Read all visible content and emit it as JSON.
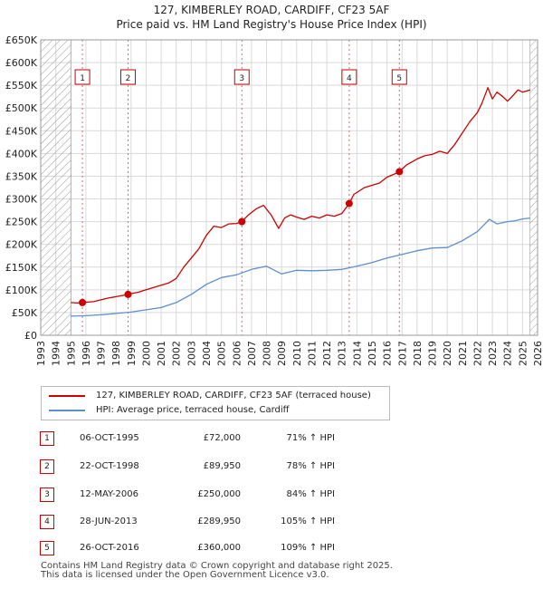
{
  "title_line1": "127, KIMBERLEY ROAD, CARDIFF, CF23 5AF",
  "title_line2": "Price paid vs. HM Land Registry's House Price Index (HPI)",
  "colors": {
    "property": "#cc0000",
    "hpi": "#5b8fd0",
    "grid": "#d9d9d9",
    "hatch": "#999999",
    "marker_line": "#e06666"
  },
  "chart_data": {
    "type": "line",
    "title": "Price paid vs. HM Land Registry's House Price Index (HPI)",
    "xlabel": "",
    "ylabel": "",
    "xlim": [
      1993,
      2026
    ],
    "ylim": [
      0,
      650000
    ],
    "x_ticks": [
      "1993",
      "1994",
      "1995",
      "1996",
      "1997",
      "1998",
      "1999",
      "2000",
      "2001",
      "2002",
      "2003",
      "2004",
      "2005",
      "2006",
      "2007",
      "2008",
      "2009",
      "2010",
      "2011",
      "2012",
      "2013",
      "2014",
      "2015",
      "2016",
      "2017",
      "2018",
      "2019",
      "2020",
      "2021",
      "2022",
      "2023",
      "2024",
      "2025",
      "2026"
    ],
    "y_ticks": [
      {
        "value": 0,
        "label": "£0"
      },
      {
        "value": 50000,
        "label": "£50K"
      },
      {
        "value": 100000,
        "label": "£100K"
      },
      {
        "value": 150000,
        "label": "£150K"
      },
      {
        "value": 200000,
        "label": "£200K"
      },
      {
        "value": 250000,
        "label": "£250K"
      },
      {
        "value": 300000,
        "label": "£300K"
      },
      {
        "value": 350000,
        "label": "£350K"
      },
      {
        "value": 400000,
        "label": "£400K"
      },
      {
        "value": 450000,
        "label": "£450K"
      },
      {
        "value": 500000,
        "label": "£500K"
      },
      {
        "value": 550000,
        "label": "£550K"
      },
      {
        "value": 600000,
        "label": "£600K"
      },
      {
        "value": 650000,
        "label": "£650K"
      }
    ],
    "hatched_ranges": [
      [
        1993,
        1995.0
      ],
      [
        2025.5,
        2026
      ]
    ],
    "series": [
      {
        "name": "127, KIMBERLEY ROAD, CARDIFF, CF23 5AF (terraced house)",
        "color": "#cc0000",
        "x": [
          1995.0,
          1995.5,
          1995.77,
          1996.5,
          1997.0,
          1997.5,
          1998.0,
          1998.5,
          1998.8,
          1999.5,
          2000.0,
          2000.5,
          2001.0,
          2001.5,
          2002.0,
          2002.5,
          2003.0,
          2003.5,
          2004.0,
          2004.5,
          2005.0,
          2005.5,
          2006.0,
          2006.36,
          2006.8,
          2007.3,
          2007.8,
          2008.3,
          2008.8,
          2009.2,
          2009.6,
          2010.0,
          2010.5,
          2011.0,
          2011.5,
          2012.0,
          2012.5,
          2013.0,
          2013.49,
          2013.8,
          2014.5,
          2015.0,
          2015.5,
          2016.0,
          2016.5,
          2016.82,
          2017.3,
          2018.0,
          2018.5,
          2019.0,
          2019.5,
          2020.0,
          2020.5,
          2021.0,
          2021.5,
          2022.0,
          2022.3,
          2022.7,
          2023.0,
          2023.3,
          2023.7,
          2024.0,
          2024.3,
          2024.7,
          2025.0,
          2025.5
        ],
        "y": [
          72000,
          71000,
          72000,
          74000,
          78000,
          82000,
          85000,
          88000,
          89950,
          95000,
          100000,
          105000,
          110000,
          115000,
          125000,
          150000,
          170000,
          190000,
          220000,
          240000,
          237000,
          245000,
          246000,
          250000,
          265000,
          278000,
          286000,
          265000,
          235000,
          258000,
          265000,
          260000,
          255000,
          262000,
          258000,
          265000,
          262000,
          268000,
          289950,
          310000,
          325000,
          330000,
          335000,
          348000,
          355000,
          360000,
          375000,
          388000,
          395000,
          398000,
          405000,
          400000,
          420000,
          445000,
          470000,
          490000,
          510000,
          545000,
          520000,
          535000,
          525000,
          515000,
          525000,
          540000,
          535000,
          540000
        ]
      },
      {
        "name": "HPI: Average price, terraced house, Cardiff",
        "color": "#5b8fd0",
        "x": [
          1995.0,
          1996.0,
          1997.0,
          1998.0,
          1999.0,
          2000.0,
          2001.0,
          2002.0,
          2003.0,
          2004.0,
          2005.0,
          2006.0,
          2007.0,
          2008.0,
          2009.0,
          2010.0,
          2011.0,
          2012.0,
          2013.0,
          2014.0,
          2015.0,
          2016.0,
          2017.0,
          2018.0,
          2019.0,
          2020.0,
          2021.0,
          2022.0,
          2022.8,
          2023.3,
          2024.0,
          2024.5,
          2025.0,
          2025.5
        ],
        "y": [
          42000,
          43000,
          45000,
          48000,
          51000,
          56000,
          61000,
          72000,
          90000,
          112000,
          127000,
          133000,
          145000,
          152000,
          135000,
          143000,
          142000,
          143000,
          145000,
          152000,
          160000,
          170000,
          178000,
          186000,
          192000,
          193000,
          208000,
          228000,
          255000,
          245000,
          250000,
          252000,
          256000,
          258000
        ]
      }
    ],
    "sale_markers": [
      {
        "id": "1",
        "x": 1995.77,
        "y": 72000
      },
      {
        "id": "2",
        "x": 1998.8,
        "y": 89950
      },
      {
        "id": "3",
        "x": 2006.36,
        "y": 250000
      },
      {
        "id": "4",
        "x": 2013.49,
        "y": 289950
      },
      {
        "id": "5",
        "x": 2016.82,
        "y": 360000
      }
    ]
  },
  "legend": {
    "property_label": "127, KIMBERLEY ROAD, CARDIFF, CF23 5AF (terraced house)",
    "hpi_label": "HPI: Average price, terraced house, Cardiff"
  },
  "sales": [
    {
      "id": "1",
      "date": "06-OCT-1995",
      "price": "£72,000",
      "hpi": "71% ↑ HPI"
    },
    {
      "id": "2",
      "date": "22-OCT-1998",
      "price": "£89,950",
      "hpi": "78% ↑ HPI"
    },
    {
      "id": "3",
      "date": "12-MAY-2006",
      "price": "£250,000",
      "hpi": "84% ↑ HPI"
    },
    {
      "id": "4",
      "date": "28-JUN-2013",
      "price": "£289,950",
      "hpi": "105% ↑ HPI"
    },
    {
      "id": "5",
      "date": "26-OCT-2016",
      "price": "£360,000",
      "hpi": "109% ↑ HPI"
    }
  ],
  "footer": {
    "line1": "Contains HM Land Registry data © Crown copyright and database right 2025.",
    "line2": "This data is licensed under the Open Government Licence v3.0."
  }
}
